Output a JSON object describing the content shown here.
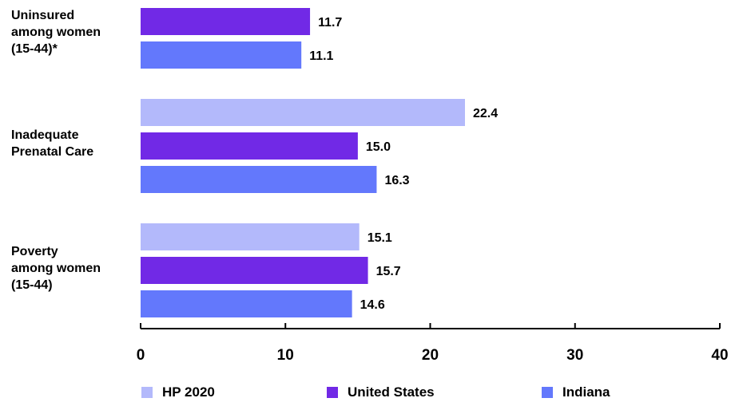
{
  "chart_data": {
    "type": "bar",
    "orientation": "horizontal",
    "categories": [
      "Uninsured\namong women\n(15-44)*",
      "Inadequate\nPrenatal Care",
      "Poverty\namong women\n(15-44)"
    ],
    "series": [
      {
        "name": "HP 2020",
        "color": "#b3b9fb",
        "values": [
          null,
          22.4,
          15.1
        ],
        "labels": [
          "",
          "22.4",
          "15.1"
        ]
      },
      {
        "name": "United States",
        "color": "#7129e6",
        "values": [
          11.7,
          15.0,
          15.7
        ],
        "labels": [
          "11.7",
          "15.0",
          "15.7"
        ]
      },
      {
        "name": "Indiana",
        "color": "#6378fc",
        "values": [
          11.1,
          16.3,
          14.6
        ],
        "labels": [
          "11.1",
          "16.3",
          "14.6"
        ]
      }
    ],
    "xlim": [
      0,
      40
    ],
    "xticks": [
      "0",
      "10",
      "20",
      "30",
      "40"
    ],
    "grid": false,
    "legend_position": "bottom"
  }
}
